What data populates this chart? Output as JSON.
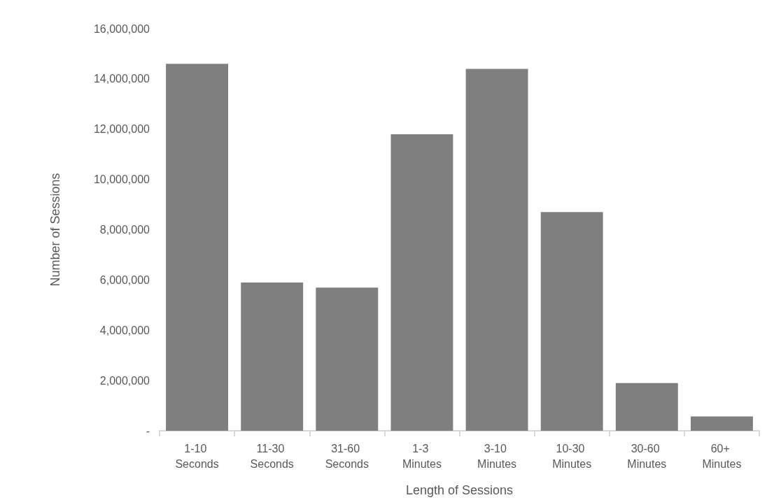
{
  "chart_data": {
    "type": "bar",
    "xlabel": "Length of Sessions",
    "ylabel": "Number of Sessions",
    "categories": [
      "1-10 Seconds",
      "11-30 Seconds",
      "31-60 Seconds",
      "1-3 Minutes",
      "3-10 Minutes",
      "10-30 Minutes",
      "30-60 Minutes",
      "60+ Minutes"
    ],
    "values": [
      14600000,
      5900000,
      5700000,
      11800000,
      14400000,
      8700000,
      1900000,
      570000
    ],
    "color": "#7f7f7f",
    "ylim": [
      0,
      16000000
    ],
    "yticks": [
      {
        "value": 0,
        "label": "-"
      },
      {
        "value": 2000000,
        "label": "2,000,000"
      },
      {
        "value": 4000000,
        "label": "4,000,000"
      },
      {
        "value": 6000000,
        "label": "6,000,000"
      },
      {
        "value": 8000000,
        "label": "8,000,000"
      },
      {
        "value": 10000000,
        "label": "10,000,000"
      },
      {
        "value": 12000000,
        "label": "12,000,000"
      },
      {
        "value": 14000000,
        "label": "14,000,000"
      },
      {
        "value": 16000000,
        "label": "16,000,000"
      }
    ],
    "grid": false
  }
}
